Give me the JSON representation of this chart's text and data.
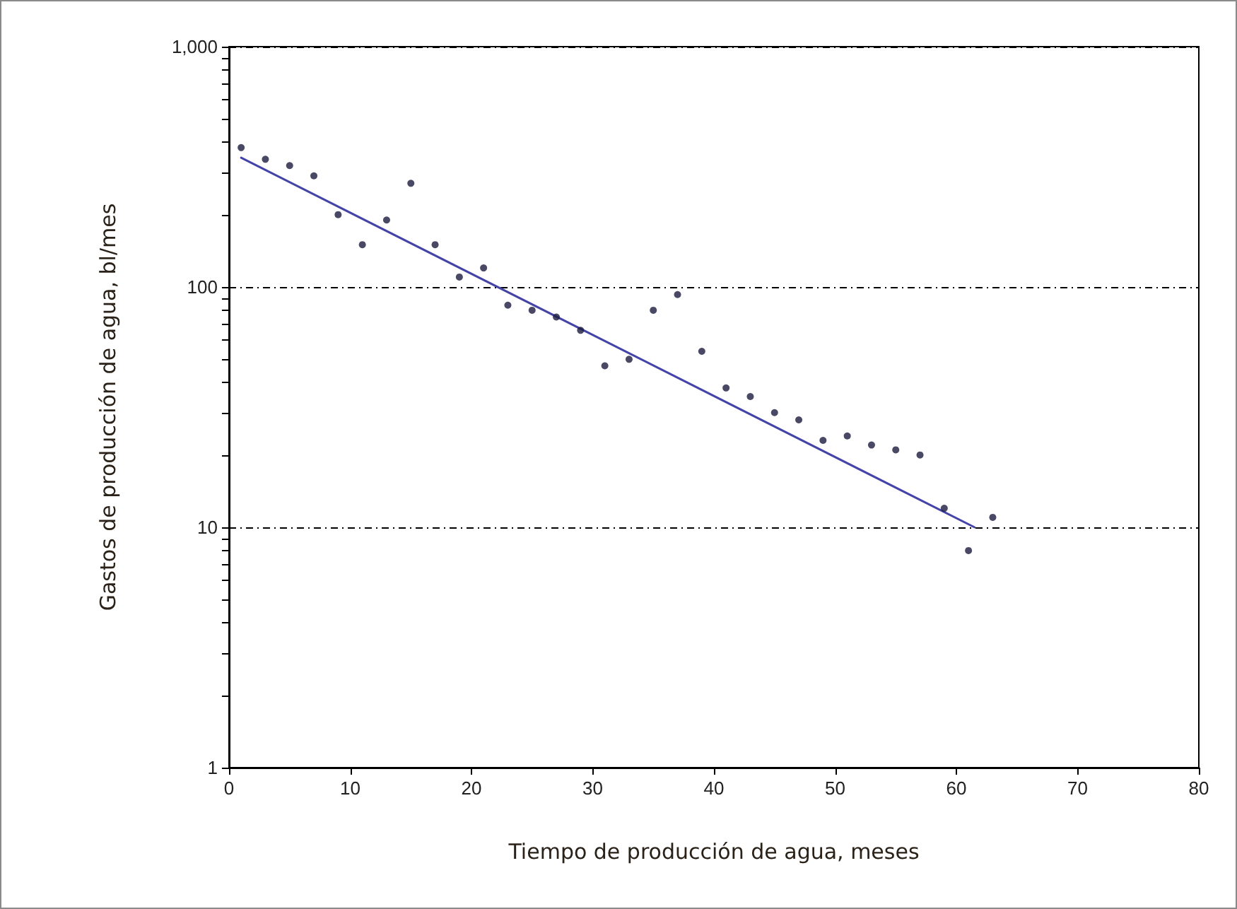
{
  "chart_data": {
    "type": "scatter",
    "xlabel": "Tiempo de producción de agua, meses",
    "ylabel": "Gastos de producción de agua, bl/mes",
    "x": [
      1,
      3,
      5,
      7,
      9,
      11,
      13,
      15,
      17,
      19,
      21,
      23,
      25,
      27,
      29,
      31,
      33,
      35,
      37,
      39,
      41,
      43,
      45,
      47,
      49,
      51,
      53,
      55,
      57,
      59,
      61,
      63
    ],
    "series": [
      {
        "color": "#1c1c40",
        "marker": "circle",
        "values": [
          380,
          340,
          320,
          290,
          200,
          150,
          190,
          270,
          150,
          110,
          120,
          84,
          80,
          75,
          66,
          47,
          50,
          80,
          93,
          54,
          38,
          35,
          30,
          28,
          23,
          24,
          22,
          21,
          20,
          12,
          8,
          11
        ]
      },
      {
        "type": "line",
        "color": "#4444a8",
        "marker": "none",
        "line_style": "solid",
        "x": [
          1,
          61.5
        ],
        "values": [
          345,
          10
        ]
      }
    ],
    "xlim": [
      0,
      80
    ],
    "xticks": [
      0,
      10,
      20,
      30,
      40,
      50,
      60,
      70,
      80
    ],
    "ylim": [
      1,
      1000
    ],
    "yticks": [
      1,
      {
        "value": 2,
        "label": null
      },
      {
        "value": 3,
        "label": null
      },
      {
        "value": 4,
        "label": null
      },
      {
        "value": 5,
        "label": null
      },
      {
        "value": 6,
        "label": null
      },
      {
        "value": 7,
        "label": null
      },
      {
        "value": 8,
        "label": null
      },
      {
        "value": 9,
        "label": null
      },
      10,
      {
        "value": 20,
        "label": null
      },
      {
        "value": 30,
        "label": null
      },
      {
        "value": 40,
        "label": null
      },
      {
        "value": 50,
        "label": null
      },
      {
        "value": 60,
        "label": null
      },
      {
        "value": 70,
        "label": null
      },
      {
        "value": 80,
        "label": null
      },
      {
        "value": 90,
        "label": null
      },
      100,
      {
        "value": 200,
        "label": null
      },
      {
        "value": 300,
        "label": null
      },
      {
        "value": 400,
        "label": null
      },
      {
        "value": 500,
        "label": null
      },
      {
        "value": 600,
        "label": null
      },
      {
        "value": 700,
        "label": null
      },
      {
        "value": 800,
        "label": null
      },
      {
        "value": 900,
        "label": null
      },
      {
        "value": 1000,
        "label": "1,000"
      }
    ],
    "log": "y",
    "grid": "y"
  }
}
